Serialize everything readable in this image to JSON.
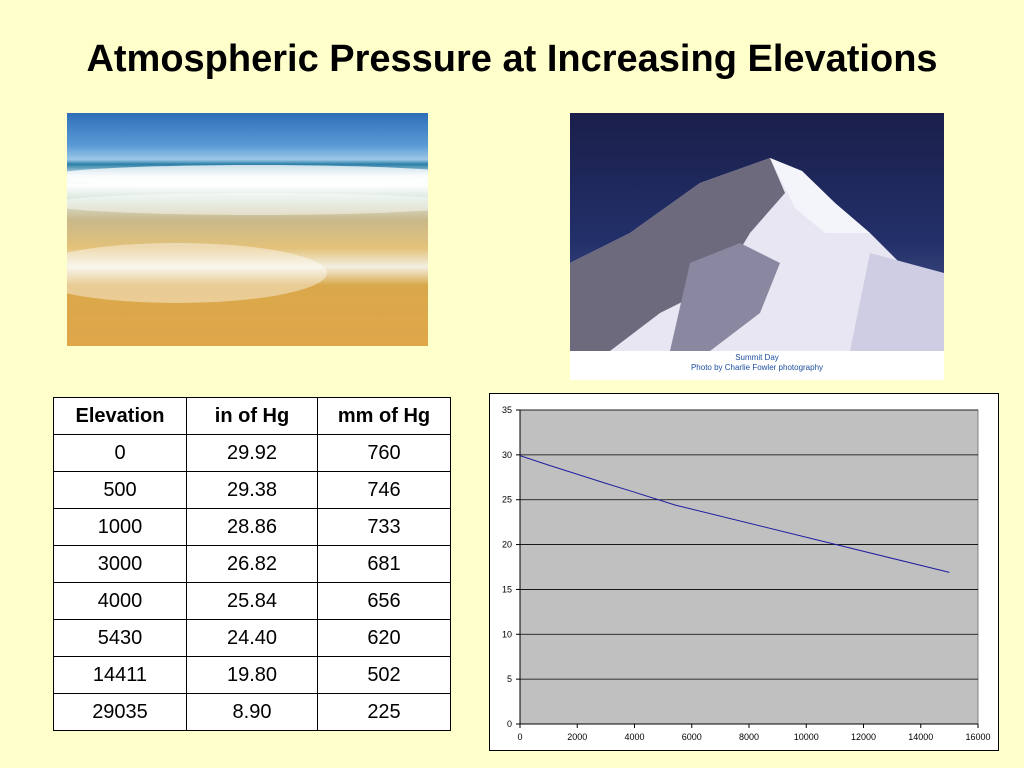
{
  "slide": {
    "title": "Atmospheric Pressure at Increasing Elevations",
    "photo_caption_line1": "Summit Day",
    "photo_caption_line2": "Photo by Charlie Fowler photography"
  },
  "table": {
    "headers": [
      "Elevation",
      "in of Hg",
      "mm of Hg"
    ],
    "rows": [
      [
        "0",
        "29.92",
        "760"
      ],
      [
        "500",
        "29.38",
        "746"
      ],
      [
        "1000",
        "28.86",
        "733"
      ],
      [
        "3000",
        "26.82",
        "681"
      ],
      [
        "4000",
        "25.84",
        "656"
      ],
      [
        "5430",
        "24.40",
        "620"
      ],
      [
        "14411",
        "19.80",
        "502"
      ],
      [
        "29035",
        "8.90",
        "225"
      ]
    ]
  },
  "chart_data": {
    "type": "line",
    "title": "",
    "xlabel": "",
    "ylabel": "",
    "xlim": [
      0,
      16000
    ],
    "ylim": [
      0,
      35
    ],
    "x_ticks": [
      0,
      2000,
      4000,
      6000,
      8000,
      10000,
      12000,
      14000,
      16000
    ],
    "y_ticks": [
      0,
      5,
      10,
      15,
      20,
      25,
      30,
      35
    ],
    "grid": true,
    "plot_background": "#c0c0c0",
    "series": [
      {
        "color": "#1f1fa0",
        "points": [
          [
            0,
            29.92
          ],
          [
            500,
            29.38
          ],
          [
            1000,
            28.86
          ],
          [
            3000,
            26.82
          ],
          [
            4000,
            25.84
          ],
          [
            5430,
            24.4
          ],
          [
            15000,
            16.9
          ]
        ]
      }
    ]
  }
}
